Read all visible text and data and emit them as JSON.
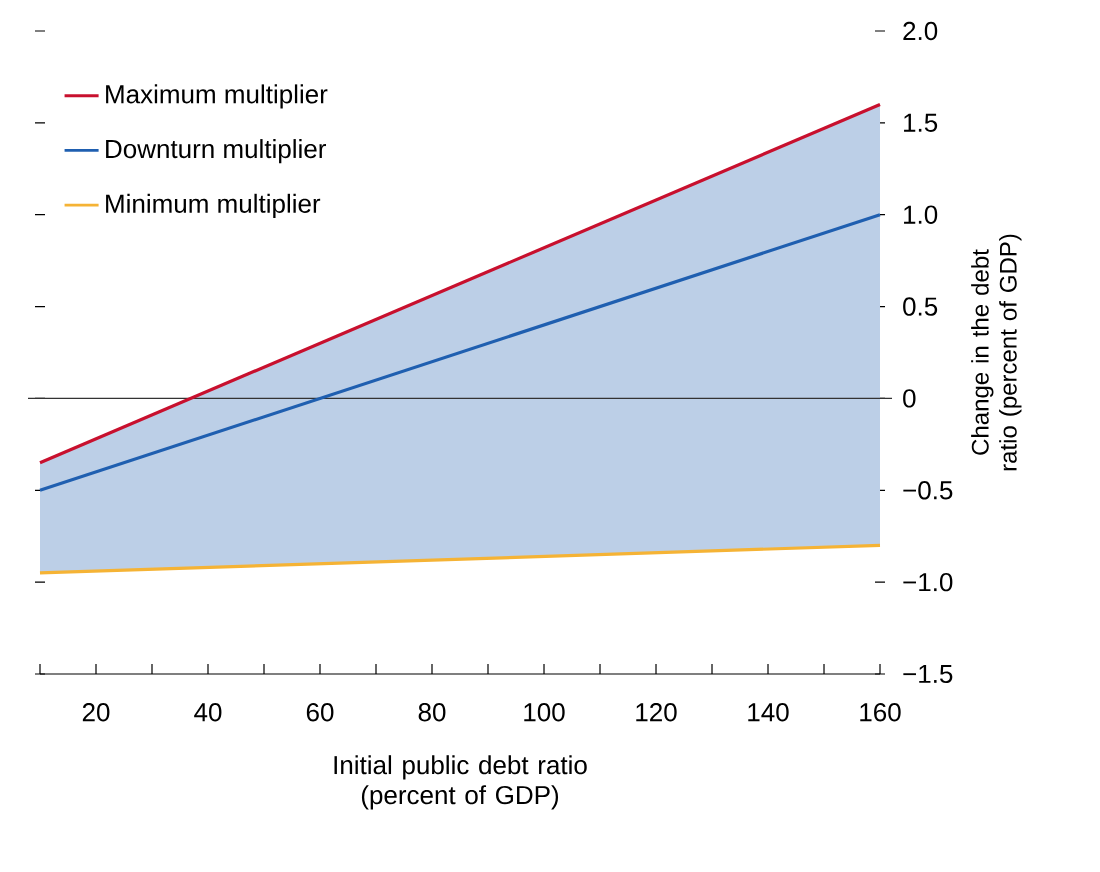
{
  "chart_data": {
    "type": "line",
    "xlabel": "Initial public debt ratio (percent of GDP)",
    "ylabel": "Change in the debt ratio (percent of GDP)",
    "x": [
      10,
      160
    ],
    "xlim": [
      10,
      160
    ],
    "ylim": [
      -1.5,
      2.0
    ],
    "xticks": [
      {
        "value": 10,
        "label": null
      },
      20,
      {
        "value": 30,
        "label": null
      },
      40,
      {
        "value": 50,
        "label": null
      },
      60,
      {
        "value": 70,
        "label": null
      },
      80,
      {
        "value": 90,
        "label": null
      },
      100,
      {
        "value": 110,
        "label": null
      },
      120,
      {
        "value": 130,
        "label": null
      },
      140,
      {
        "value": 150,
        "label": null
      },
      160
    ],
    "yticks": [
      {
        "value": -1.5,
        "label": "−1.5"
      },
      {
        "value": -1.0,
        "label": "−1.0"
      },
      {
        "value": -0.5,
        "label": "−0.5"
      },
      0,
      0.5,
      {
        "value": 1.0,
        "label": "1.0"
      },
      1.5,
      {
        "value": 2.0,
        "label": "2.0"
      }
    ],
    "series": [
      {
        "name": "Maximum multiplier",
        "color": "#c8102e",
        "values": [
          -0.35,
          1.6
        ]
      },
      {
        "name": "Downturn multiplier",
        "color": "#1f5fb0",
        "values": [
          -0.5,
          1.0
        ],
        "lower": [
          -0.95,
          -0.8
        ],
        "upper": [
          -0.35,
          1.6
        ]
      },
      {
        "name": "Minimum multiplier",
        "color": "#f5b335",
        "values": [
          -0.95,
          -0.8
        ]
      }
    ],
    "ref_lines": [
      {
        "axis": "y",
        "value": 0,
        "color": "#333333"
      }
    ],
    "legend": "top left",
    "marker": "none",
    "line_style": "solid"
  }
}
